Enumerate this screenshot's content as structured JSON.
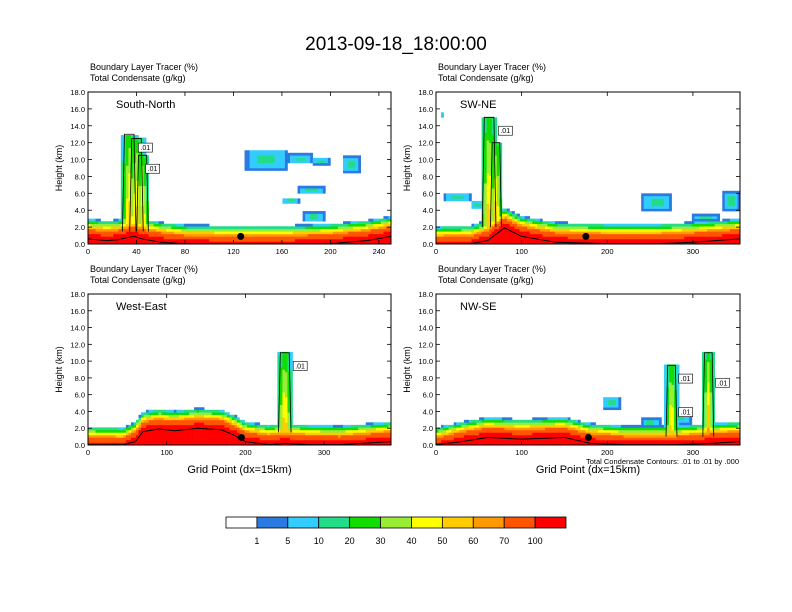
{
  "figure": {
    "title": "2013-09-18_18:00:00",
    "contour_info": "Total Condensate Contours: .01 to .01 by .000"
  },
  "colorbar": {
    "colors": [
      "#ffffff",
      "#2a7ae2",
      "#33ccff",
      "#22dd88",
      "#11dd00",
      "#99ee33",
      "#ffff00",
      "#ffcc00",
      "#ff9900",
      "#ff5500",
      "#ff0000"
    ],
    "labels": [
      "1",
      "5",
      "10",
      "20",
      "30",
      "40",
      "50",
      "60",
      "70",
      "100"
    ]
  },
  "chart_data": [
    {
      "type": "heatmap",
      "panel_label": "South-North",
      "title_lines": [
        "Boundary Layer Tracer    (%)",
        "Total Condensate    (g/kg)"
      ],
      "ylabel": "Height (km)",
      "xlabel": "",
      "xlim": [
        0,
        250
      ],
      "ylim": [
        0,
        18
      ],
      "xticks": [
        0,
        40,
        80,
        120,
        160,
        200,
        240
      ],
      "yticks": [
        "0.0",
        "2.0",
        "4.0",
        "6.0",
        "8.0",
        "10.0",
        "12.0",
        "14.0",
        "16.0",
        "18.0"
      ],
      "marker_x": 126,
      "contour_labels": [
        ".01",
        ".01"
      ],
      "surface": [
        [
          0,
          1.2
        ],
        [
          15,
          1.0
        ],
        [
          25,
          1.1
        ],
        [
          30,
          1.3
        ],
        [
          38,
          1.5
        ],
        [
          45,
          1.2
        ],
        [
          60,
          0.8
        ],
        [
          80,
          0.5
        ],
        [
          120,
          0.4
        ],
        [
          160,
          0.4
        ],
        [
          200,
          0.6
        ],
        [
          230,
          1.0
        ],
        [
          250,
          1.5
        ]
      ],
      "plumes": [
        {
          "x": 34,
          "top": 13.0,
          "width": 3.5,
          "bottom": 1.5
        },
        {
          "x": 40,
          "top": 12.5,
          "width": 3.5,
          "bottom": 1.5
        },
        {
          "x": 45,
          "top": 10.5,
          "width": 3.0,
          "bottom": 1.5
        }
      ],
      "clouds": [
        [
          130,
          165,
          8.8,
          11.2
        ],
        [
          165,
          185,
          9.5,
          10.7
        ],
        [
          185,
          200,
          9.4,
          10.2
        ],
        [
          210,
          225,
          8.5,
          10.5
        ],
        [
          173,
          195,
          6.0,
          6.8
        ],
        [
          160,
          175,
          4.8,
          5.5
        ],
        [
          178,
          195,
          2.7,
          3.8
        ]
      ]
    },
    {
      "type": "heatmap",
      "panel_label": "SW-NE",
      "title_lines": [
        "Boundary Layer Tracer    (%)",
        "Total Condensate    (g/kg)"
      ],
      "ylabel": "Height (km)",
      "xlabel": "",
      "xlim": [
        0,
        355
      ],
      "ylim": [
        0,
        18
      ],
      "xticks": [
        0,
        100,
        200,
        300
      ],
      "yticks": [
        "0.0",
        "2.0",
        "4.0",
        "6.0",
        "8.0",
        "10.0",
        "12.0",
        "14.0",
        "16.0",
        "18.0"
      ],
      "marker_x": 175,
      "contour_labels": [
        ".01"
      ],
      "surface": [
        [
          0,
          0.3
        ],
        [
          40,
          0.4
        ],
        [
          60,
          1.0
        ],
        [
          80,
          2.5
        ],
        [
          100,
          1.5
        ],
        [
          140,
          0.8
        ],
        [
          200,
          0.6
        ],
        [
          260,
          0.6
        ],
        [
          300,
          0.8
        ],
        [
          355,
          1.2
        ]
      ],
      "plumes": [
        {
          "x": 62,
          "top": 15.0,
          "width": 5.0,
          "bottom": 2.0
        },
        {
          "x": 70,
          "top": 12.0,
          "width": 4.0,
          "bottom": 2.0
        }
      ],
      "clouds": [
        [
          10,
          40,
          5.0,
          6.0
        ],
        [
          40,
          60,
          4.2,
          5.2
        ],
        [
          240,
          275,
          4.0,
          6.0
        ],
        [
          300,
          330,
          2.8,
          3.5
        ],
        [
          335,
          355,
          4.0,
          6.2
        ],
        [
          5,
          10,
          15.0,
          15.5
        ]
      ]
    },
    {
      "type": "heatmap",
      "panel_label": "West-East",
      "title_lines": [
        "Boundary Layer Tracer    (%)",
        "Total Condensate    (g/kg)"
      ],
      "ylabel": "Height (km)",
      "xlabel": "Grid Point (dx=15km)",
      "xlim": [
        0,
        385
      ],
      "ylim": [
        0,
        18
      ],
      "xticks": [
        0,
        100,
        200,
        300
      ],
      "yticks": [
        "0.0",
        "2.0",
        "4.0",
        "6.0",
        "8.0",
        "10.0",
        "12.0",
        "14.0",
        "16.0",
        "18.0"
      ],
      "marker_x": 195,
      "contour_labels": [
        ".01"
      ],
      "surface": [
        [
          0,
          0.4
        ],
        [
          45,
          0.3
        ],
        [
          60,
          1.0
        ],
        [
          70,
          2.2
        ],
        [
          90,
          2.5
        ],
        [
          110,
          2.3
        ],
        [
          140,
          2.6
        ],
        [
          170,
          2.4
        ],
        [
          185,
          1.8
        ],
        [
          200,
          1.0
        ],
        [
          230,
          0.6
        ],
        [
          250,
          0.8
        ],
        [
          280,
          0.6
        ],
        [
          320,
          0.5
        ],
        [
          385,
          1.0
        ]
      ],
      "plumes": [
        {
          "x": 250,
          "top": 11.0,
          "width": 5.0,
          "bottom": 1.5
        }
      ],
      "clouds": []
    },
    {
      "type": "heatmap",
      "panel_label": "NW-SE",
      "title_lines": [
        "Boundary Layer Tracer    (%)",
        "Total Condensate    (g/kg)"
      ],
      "ylabel": "Height (km)",
      "xlabel": "Grid Point (dx=15km)",
      "xlim": [
        0,
        355
      ],
      "ylim": [
        0,
        18
      ],
      "xticks": [
        0,
        100,
        200,
        300
      ],
      "yticks": [
        "0.0",
        "2.0",
        "4.0",
        "6.0",
        "8.0",
        "10.0",
        "12.0",
        "14.0",
        "16.0",
        "18.0"
      ],
      "marker_x": 178,
      "contour_labels": [
        ".01",
        ".01",
        ".01"
      ],
      "surface": [
        [
          0,
          0.3
        ],
        [
          30,
          1.0
        ],
        [
          60,
          1.5
        ],
        [
          100,
          1.3
        ],
        [
          150,
          1.5
        ],
        [
          180,
          0.8
        ],
        [
          220,
          0.5
        ],
        [
          280,
          0.5
        ],
        [
          320,
          0.8
        ],
        [
          355,
          1.0
        ]
      ],
      "plumes": [
        {
          "x": 275,
          "top": 9.5,
          "width": 4.0,
          "bottom": 1.0
        },
        {
          "x": 318,
          "top": 11.0,
          "width": 4.0,
          "bottom": 1.0
        }
      ],
      "clouds": [
        [
          195,
          215,
          4.3,
          5.8
        ],
        [
          240,
          262,
          2.2,
          3.2
        ],
        [
          265,
          300,
          2.5,
          4.0
        ]
      ]
    }
  ]
}
